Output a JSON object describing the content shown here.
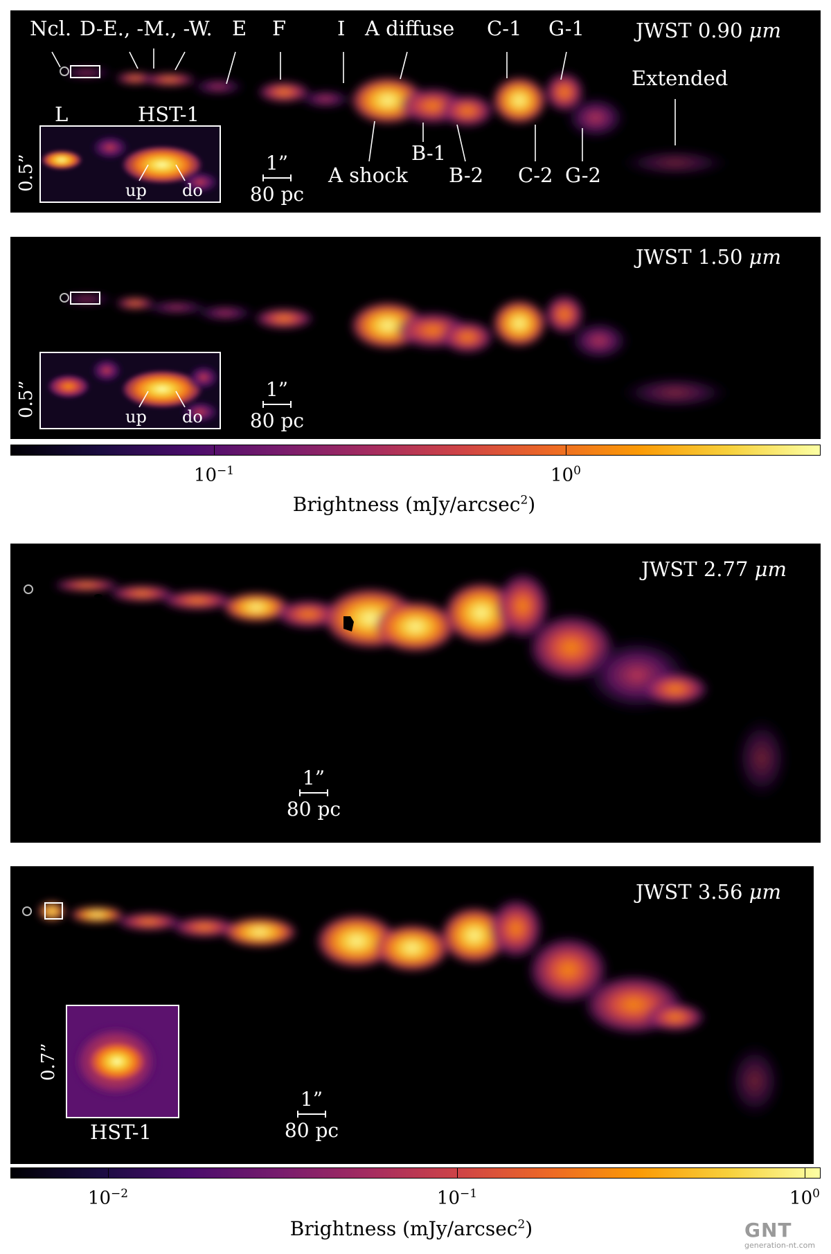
{
  "panels": [
    {
      "title_prefix": "JWST 0.90",
      "title_unit": "μm",
      "inset_size": "0.5”",
      "inset_labels": {
        "left": "L",
        "right": "HST-1",
        "up": "up",
        "down": "do"
      },
      "scale": {
        "angle": "1”",
        "dist": "80 pc"
      }
    },
    {
      "title_prefix": "JWST 1.50",
      "title_unit": "μm",
      "inset_size": "0.5”",
      "inset_labels": {
        "up": "up",
        "down": "do"
      },
      "scale": {
        "angle": "1”",
        "dist": "80 pc"
      }
    },
    {
      "title_prefix": "JWST 2.77",
      "title_unit": "μm",
      "scale": {
        "angle": "1”",
        "dist": "80 pc"
      }
    },
    {
      "title_prefix": "JWST 3.56",
      "title_unit": "μm",
      "inset_size": "0.7”",
      "inset_label": "HST-1",
      "scale": {
        "angle": "1”",
        "dist": "80 pc"
      }
    }
  ],
  "features_top": [
    "Ncl.",
    "D-E., -M., -W.",
    "E",
    "F",
    "I",
    "A diffuse",
    "C-1",
    "G-1",
    "Extended"
  ],
  "features_bottom": [
    "A shock",
    "B-1",
    "B-2",
    "C-2",
    "G-2"
  ],
  "colorbar1": {
    "ticks": [
      {
        "base": "10",
        "exp": "−1"
      },
      {
        "base": "10",
        "exp": "0"
      }
    ],
    "label": "Brightness (mJy/arcsec",
    "label_exp": "2",
    "label_end": ")"
  },
  "colorbar2": {
    "ticks": [
      {
        "base": "10",
        "exp": "−2"
      },
      {
        "base": "10",
        "exp": "−1"
      },
      {
        "base": "10",
        "exp": "0"
      }
    ],
    "label": "Brightness (mJy/arcsec",
    "label_exp": "2",
    "label_end": ")"
  },
  "watermark": {
    "logo": "GNT",
    "site": "generation-nt.com"
  },
  "colors": {
    "colormap": "inferno",
    "panel_bg": "#000000",
    "text": "#ffffff"
  }
}
